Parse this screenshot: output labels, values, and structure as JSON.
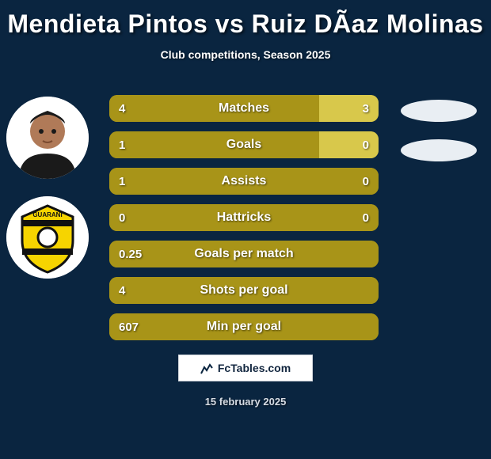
{
  "title": "Mendieta Pintos vs Ruiz DÃ­az Molinas",
  "subtitle": "Club competitions, Season 2025",
  "date": "15 february 2025",
  "footer_text": "FcTables.com",
  "colors": {
    "background": "#0a2540",
    "bar_left": "#a89418",
    "bar_right": "#d8c84b",
    "ellipse": "#e9eef3",
    "avatar_bg": "#ffffff",
    "footer_bg": "#ffffff"
  },
  "bars": [
    {
      "label": "Matches",
      "left_val": "4",
      "right_val": "3",
      "left_pct": 78,
      "right_pct": 22
    },
    {
      "label": "Goals",
      "left_val": "1",
      "right_val": "0",
      "left_pct": 78,
      "right_pct": 22
    },
    {
      "label": "Assists",
      "left_val": "1",
      "right_val": "0",
      "left_pct": 100,
      "right_pct": 0
    },
    {
      "label": "Hattricks",
      "left_val": "0",
      "right_val": "0",
      "left_pct": 100,
      "right_pct": 0
    },
    {
      "label": "Goals per match",
      "left_val": "0.25",
      "right_val": "",
      "left_pct": 100,
      "right_pct": 0
    },
    {
      "label": "Shots per goal",
      "left_val": "4",
      "right_val": "",
      "left_pct": 100,
      "right_pct": 0
    },
    {
      "label": "Min per goal",
      "left_val": "607",
      "right_val": "",
      "left_pct": 100,
      "right_pct": 0
    }
  ]
}
